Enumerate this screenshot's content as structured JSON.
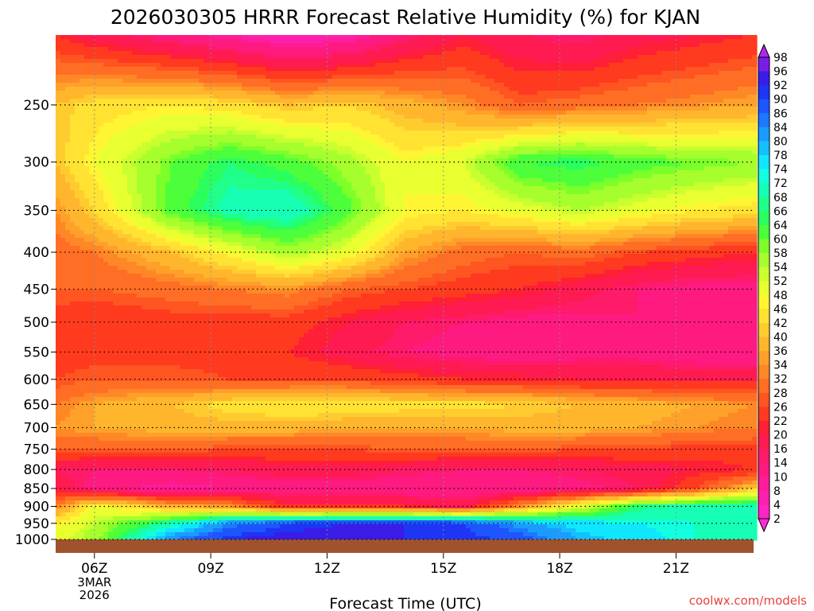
{
  "chart_data": {
    "type": "heatmap",
    "title": "2026030305 HRRR Forecast Relative Humidity (%) for KJAN",
    "xlabel": "Forecast Time (UTC)",
    "ylabel": "",
    "x_ticks": [
      "06Z",
      "09Z",
      "12Z",
      "15Z",
      "18Z",
      "21Z"
    ],
    "x_tick_hours": [
      6,
      9,
      12,
      15,
      18,
      21
    ],
    "x_range_hours": [
      5,
      23
    ],
    "date_label": [
      "3MAR",
      "2026"
    ],
    "y_ticks": [
      250,
      300,
      350,
      400,
      450,
      500,
      550,
      600,
      650,
      700,
      750,
      800,
      850,
      900,
      950,
      1000
    ],
    "y_range_hPa": [
      200,
      1000
    ],
    "y_scale": "log",
    "grid": true,
    "colorbar": {
      "labels": [
        2,
        4,
        8,
        10,
        14,
        16,
        20,
        22,
        26,
        28,
        32,
        34,
        36,
        40,
        42,
        46,
        48,
        52,
        54,
        58,
        60,
        64,
        66,
        68,
        72,
        74,
        78,
        80,
        84,
        86,
        90,
        92,
        96,
        98
      ],
      "colors": [
        "#ff2bd8",
        "#ff24c4",
        "#ff1fae",
        "#ff1c98",
        "#ff1a82",
        "#ff1a6a",
        "#ff1a52",
        "#ff1f36",
        "#ff3a1f",
        "#ff5521",
        "#ff6e24",
        "#ff8826",
        "#ffa02a",
        "#ffb62d",
        "#ffcc30",
        "#ffe232",
        "#fff533",
        "#e8ff30",
        "#c9ff2e",
        "#a6ff2c",
        "#7dff2a",
        "#4dff3b",
        "#2bff5e",
        "#1fff8a",
        "#17ffb5",
        "#12ffe0",
        "#10e6ff",
        "#15c0ff",
        "#1a9cff",
        "#1c78ff",
        "#1d55ff",
        "#1e35f5",
        "#3a1ce8",
        "#7a1ce6",
        "#b026ef"
      ],
      "position": "right"
    },
    "grid_times": [
      5,
      6,
      8,
      9.5,
      11,
      12.5,
      14,
      15.5,
      17,
      18.5,
      20,
      21.5,
      23
    ],
    "grid_levels": [
      200,
      250,
      300,
      350,
      400,
      450,
      500,
      550,
      600,
      650,
      700,
      750,
      800,
      850,
      900,
      950,
      1000
    ],
    "values": [
      [
        22,
        18,
        12,
        8,
        4,
        6,
        14,
        20,
        16,
        14,
        18,
        20,
        22
      ],
      [
        40,
        44,
        46,
        44,
        40,
        42,
        38,
        34,
        28,
        30,
        32,
        34,
        36
      ],
      [
        40,
        48,
        60,
        66,
        62,
        56,
        48,
        52,
        64,
        66,
        62,
        60,
        58
      ],
      [
        34,
        42,
        62,
        70,
        72,
        62,
        48,
        46,
        50,
        54,
        50,
        46,
        44
      ],
      [
        30,
        32,
        40,
        48,
        56,
        50,
        36,
        30,
        28,
        30,
        26,
        24,
        22
      ],
      [
        28,
        28,
        30,
        32,
        34,
        28,
        26,
        24,
        22,
        18,
        14,
        12,
        12
      ],
      [
        24,
        22,
        24,
        24,
        24,
        20,
        16,
        14,
        12,
        12,
        14,
        12,
        10
      ],
      [
        24,
        24,
        24,
        24,
        22,
        18,
        14,
        12,
        10,
        12,
        12,
        10,
        10
      ],
      [
        26,
        28,
        28,
        26,
        26,
        26,
        24,
        22,
        22,
        20,
        20,
        20,
        20
      ],
      [
        32,
        36,
        40,
        44,
        46,
        46,
        44,
        44,
        42,
        40,
        38,
        36,
        34
      ],
      [
        34,
        36,
        38,
        38,
        38,
        36,
        36,
        36,
        38,
        38,
        36,
        34,
        32
      ],
      [
        28,
        28,
        28,
        26,
        26,
        26,
        28,
        28,
        28,
        26,
        26,
        24,
        24
      ],
      [
        16,
        14,
        14,
        16,
        18,
        18,
        16,
        14,
        14,
        16,
        18,
        20,
        22
      ],
      [
        20,
        12,
        8,
        10,
        12,
        12,
        10,
        10,
        10,
        12,
        16,
        26,
        40
      ],
      [
        32,
        48,
        38,
        34,
        22,
        22,
        22,
        18,
        34,
        50,
        66,
        70,
        72
      ],
      [
        46,
        54,
        70,
        84,
        90,
        92,
        92,
        90,
        82,
        76,
        74,
        72,
        70
      ],
      [
        50,
        56,
        84,
        92,
        94,
        94,
        92,
        92,
        88,
        80,
        76,
        72,
        70
      ]
    ]
  },
  "credit": "coolwx.com/models"
}
